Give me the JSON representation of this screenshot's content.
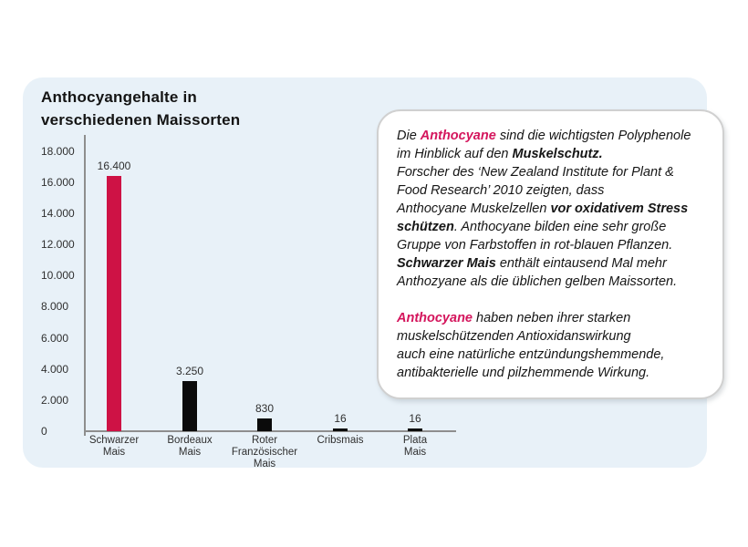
{
  "title": {
    "line1": "Anthocyangehalte in",
    "line2": "verschiedenen Maissorten"
  },
  "colors": {
    "panel_background": "#e8f1f8",
    "accent_bar": "#ce1245",
    "accent_text": "#d4155c",
    "bar_black": "#0b0b0b",
    "axis": "#8e8e8e"
  },
  "chart_data": {
    "type": "bar",
    "title": "Anthocyangehalte in verschiedenen Maissorten",
    "categories": [
      "Schwarzer Mais",
      "Bordeaux Mais",
      "Roter Französischer Mais",
      "Cribsmais",
      "Plata Mais"
    ],
    "category_label_lines": [
      [
        "Schwarzer",
        "Mais"
      ],
      [
        "Bordeaux",
        "Mais"
      ],
      [
        "Roter",
        "Französischer",
        "Mais"
      ],
      [
        "Cribsmais"
      ],
      [
        "Plata",
        "Mais"
      ]
    ],
    "values": [
      16400,
      3250,
      830,
      16,
      16
    ],
    "value_labels": [
      "16.400",
      "3.250",
      "830",
      "16",
      "16"
    ],
    "bar_colors": [
      "#ce1245",
      "#0b0b0b",
      "#0b0b0b",
      "#0b0b0b",
      "#0b0b0b"
    ],
    "xlabel": "",
    "ylabel": "",
    "ylim": [
      0,
      18000
    ],
    "yticks": [
      {
        "value": 18000,
        "label": "18.000"
      },
      {
        "value": 16000,
        "label": "16.000"
      },
      {
        "value": 14000,
        "label": "14.000"
      },
      {
        "value": 12000,
        "label": "12.000"
      },
      {
        "value": 10000,
        "label": "10.000"
      },
      {
        "value": 8000,
        "label": "8.000"
      },
      {
        "value": 6000,
        "label": "6.000"
      },
      {
        "value": 4000,
        "label": "4.000"
      },
      {
        "value": 2000,
        "label": "2.000"
      },
      {
        "value": 0,
        "label": "0"
      }
    ],
    "grid": false,
    "legend": false
  },
  "infobox": {
    "accent_color": "#d4155c",
    "paragraphs": [
      [
        {
          "t": "Die "
        },
        {
          "t": "Anthocyane",
          "b": true,
          "a": true
        },
        {
          "t": " sind die wichtigsten Polyphenole"
        },
        {
          "br": true
        },
        {
          "t": "im Hinblick auf den "
        },
        {
          "t": "Muskelschutz.",
          "b": true
        },
        {
          "br": true
        },
        {
          "t": "Forscher des ‘New Zealand Institute for Plant &"
        },
        {
          "br": true
        },
        {
          "t": "Food Research’ 2010 zeigten, dass"
        },
        {
          "br": true
        },
        {
          "t": "Anthocyane Muskelzellen "
        },
        {
          "t": "vor oxidativem Stress",
          "b": true
        },
        {
          "br": true
        },
        {
          "t": "schützen",
          "b": true
        },
        {
          "t": ".  Anthocyane bilden eine sehr große"
        },
        {
          "br": true
        },
        {
          "t": "Gruppe von Farbstoffen in rot-blauen Pflanzen."
        },
        {
          "br": true
        },
        {
          "t": "Schwarzer Mais",
          "b": true
        },
        {
          "t": "  enthält eintausend Mal mehr"
        },
        {
          "br": true
        },
        {
          "t": "Anthozyane als die üblichen gelben Maissorten."
        }
      ],
      [
        {
          "t": "Anthocyane",
          "b": true,
          "a": true
        },
        {
          "t": " haben neben ihrer starken"
        },
        {
          "br": true
        },
        {
          "t": "muskelschützenden Antioxidanswirkung"
        },
        {
          "br": true
        },
        {
          "t": "auch eine natürliche entzündungshemmende,"
        },
        {
          "br": true
        },
        {
          "t": "antibakterielle und pilzhemmende Wirkung."
        }
      ]
    ]
  }
}
